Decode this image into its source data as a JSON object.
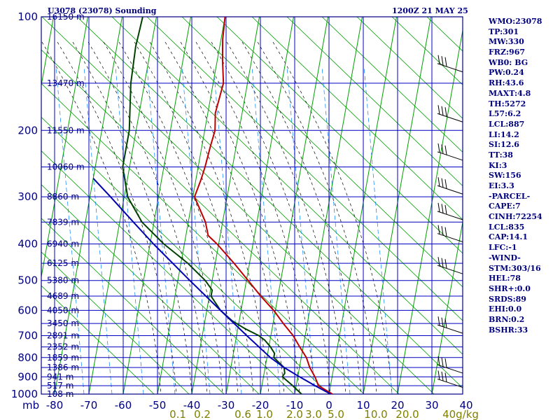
{
  "header": {
    "station": "U3078 (23078) Sounding",
    "time": "1200Z 21 MAY 25"
  },
  "indices": [
    "WMO:23078",
    "TP:301",
    "MW:330",
    "FRZ:967",
    "WB0: BG",
    "PW:0.24",
    "RH:43.6",
    "MAXT:4.8",
    "TH:5272",
    "L57:6.2",
    "LCL:887",
    "LI:14.2",
    "SI:12.6",
    "TT:38",
    "KI:3",
    "SW:156",
    "EI:3.3",
    "-PARCEL-",
    "CAPE:7",
    "CINH:72254",
    "LCL:835",
    "CAP:14.1",
    "LFC:-1",
    "-WIND-",
    "STM:303/16",
    "HEL:78",
    "SHR+:0.0",
    "SRDS:89",
    "EHI:0.0",
    "BRN:0.2",
    "BSHR:33"
  ],
  "colors": {
    "frame": "#000080",
    "grid": "#0000c0",
    "dry_adiabat": "#00a000",
    "moist_adiabat": "#000000",
    "mixing_ratio": "#0080ff",
    "temperature": "#c00000",
    "dewpoint": "#004000",
    "parcel": "#0000b0",
    "mixing_label": "#808000"
  },
  "chart_data": {
    "type": "skew-t",
    "pressure_label": "mb",
    "pressure_ticks": [
      100,
      200,
      300,
      400,
      500,
      600,
      700,
      800,
      900,
      1000
    ],
    "temperature_ticks": [
      -80,
      -70,
      -60,
      -50,
      -40,
      -30,
      -20,
      -10,
      0,
      10,
      20,
      30,
      40
    ],
    "mixing_ratio_labels": [
      "0.1",
      "0.2",
      "0.6",
      "1.0",
      "2.0",
      "3.0",
      "5.0",
      "10.0",
      "20.0",
      "40g/kg"
    ],
    "height_labels": [
      {
        "p": 100,
        "label": "16150 m"
      },
      {
        "p": 150,
        "label": "13470 m"
      },
      {
        "p": 200,
        "label": "11550 m"
      },
      {
        "p": 250,
        "label": "10060 m"
      },
      {
        "p": 300,
        "label": "8860 m"
      },
      {
        "p": 350,
        "label": "7839 m"
      },
      {
        "p": 400,
        "label": "6940 m"
      },
      {
        "p": 450,
        "label": "6125 m"
      },
      {
        "p": 500,
        "label": "5380 m"
      },
      {
        "p": 550,
        "label": "4689 m"
      },
      {
        "p": 600,
        "label": "4050 m"
      },
      {
        "p": 650,
        "label": "3450 m"
      },
      {
        "p": 700,
        "label": "2891 m"
      },
      {
        "p": 750,
        "label": "2352 m"
      },
      {
        "p": 800,
        "label": "1859 m"
      },
      {
        "p": 850,
        "label": "1386 m"
      },
      {
        "p": 900,
        "label": "941 m"
      },
      {
        "p": 950,
        "label": "517 m"
      },
      {
        "p": 1000,
        "label": "108 m"
      }
    ],
    "series": [
      {
        "name": "temperature",
        "points": [
          {
            "p": 1000,
            "t": 1.0
          },
          {
            "p": 950,
            "t": -3.5
          },
          {
            "p": 900,
            "t": -5.0
          },
          {
            "p": 850,
            "t": -7.0
          },
          {
            "p": 800,
            "t": -8.5
          },
          {
            "p": 750,
            "t": -11.0
          },
          {
            "p": 700,
            "t": -13.5
          },
          {
            "p": 650,
            "t": -17.0
          },
          {
            "p": 600,
            "t": -20.5
          },
          {
            "p": 550,
            "t": -25.0
          },
          {
            "p": 500,
            "t": -29.5
          },
          {
            "p": 450,
            "t": -34.5
          },
          {
            "p": 400,
            "t": -40.5
          },
          {
            "p": 380,
            "t": -43.5
          },
          {
            "p": 350,
            "t": -45.0
          },
          {
            "p": 300,
            "t": -49.5
          },
          {
            "p": 270,
            "t": -48.5
          },
          {
            "p": 250,
            "t": -48.0
          },
          {
            "p": 220,
            "t": -47.5
          },
          {
            "p": 200,
            "t": -47.0
          },
          {
            "p": 180,
            "t": -47.8
          },
          {
            "p": 150,
            "t": -47.0
          },
          {
            "p": 130,
            "t": -48.5
          },
          {
            "p": 115,
            "t": -49.5
          },
          {
            "p": 100,
            "t": -50.0
          }
        ]
      },
      {
        "name": "dewpoint",
        "points": [
          {
            "p": 1000,
            "t": -8.0
          },
          {
            "p": 950,
            "t": -11.0
          },
          {
            "p": 900,
            "t": -14.5
          },
          {
            "p": 880,
            "t": -14.0
          },
          {
            "p": 850,
            "t": -14.5
          },
          {
            "p": 800,
            "t": -18.0
          },
          {
            "p": 780,
            "t": -18.0
          },
          {
            "p": 750,
            "t": -19.5
          },
          {
            "p": 720,
            "t": -21.5
          },
          {
            "p": 700,
            "t": -23.5
          },
          {
            "p": 670,
            "t": -28.0
          },
          {
            "p": 640,
            "t": -32.0
          },
          {
            "p": 600,
            "t": -36.0
          },
          {
            "p": 550,
            "t": -39.5
          },
          {
            "p": 530,
            "t": -39.5
          },
          {
            "p": 500,
            "t": -42.0
          },
          {
            "p": 450,
            "t": -48.0
          },
          {
            "p": 400,
            "t": -56.0
          },
          {
            "p": 350,
            "t": -63.5
          },
          {
            "p": 300,
            "t": -69.0
          },
          {
            "p": 250,
            "t": -72.0
          },
          {
            "p": 200,
            "t": -72.0
          },
          {
            "p": 150,
            "t": -74.0
          },
          {
            "p": 120,
            "t": -74.5
          },
          {
            "p": 100,
            "t": -74.0
          }
        ]
      },
      {
        "name": "parcel",
        "points": [
          {
            "p": 1000,
            "t": 0.5
          },
          {
            "p": 950,
            "t": -4.5
          },
          {
            "p": 900,
            "t": -9.5
          },
          {
            "p": 850,
            "t": -14.5
          },
          {
            "p": 800,
            "t": -19.0
          },
          {
            "p": 700,
            "t": -27.0
          },
          {
            "p": 600,
            "t": -36.0
          },
          {
            "p": 500,
            "t": -46.5
          },
          {
            "p": 400,
            "t": -59.0
          },
          {
            "p": 350,
            "t": -66.0
          },
          {
            "p": 300,
            "t": -74.0
          },
          {
            "p": 268,
            "t": -80.0
          }
        ]
      }
    ],
    "wind_barbs": [
      {
        "p": 140
      },
      {
        "p": 190
      },
      {
        "p": 240
      },
      {
        "p": 295
      },
      {
        "p": 345
      },
      {
        "p": 395
      },
      {
        "p": 480
      },
      {
        "p": 690
      },
      {
        "p": 880
      },
      {
        "p": 960
      }
    ]
  }
}
